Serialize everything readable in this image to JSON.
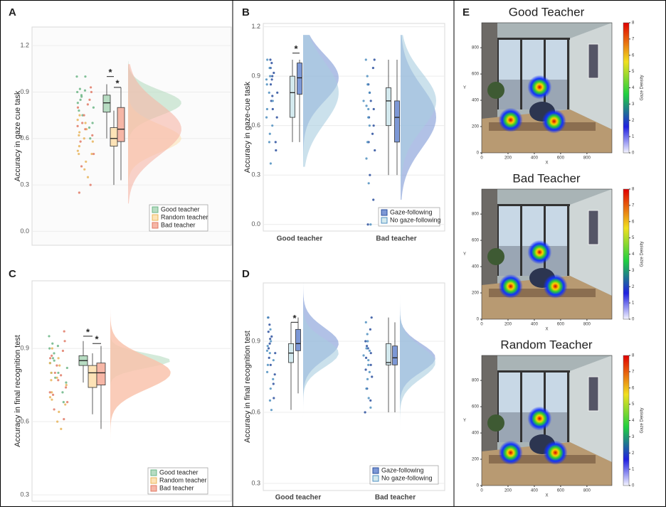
{
  "panel_labels": [
    "A",
    "B",
    "C",
    "D",
    "E"
  ],
  "chart_data": [
    {
      "type": "box",
      "ylabel": "Accuracy in gaze cue task",
      "ylim": [
        -0.09,
        1.32
      ],
      "yticks": [
        {
          "value": 0,
          "label": "0.0"
        },
        0.3,
        0.6,
        0.9,
        1.2
      ],
      "grid": true,
      "legend": "lower right",
      "series": [
        {
          "name": "Good teacher",
          "color": "#b7dcc2",
          "point_color": "#6bb585",
          "boxes": [
            {
              "low": 0.6,
              "q1": 0.77,
              "median": 0.83,
              "q3": 0.88,
              "high": 0.95
            }
          ],
          "points": [
            [
              1.0,
              0.92,
              0.9,
              0.88,
              0.85,
              0.83,
              0.8,
              0.78,
              0.75,
              0.7,
              0.67,
              0.6,
              0.91,
              0.87,
              1.0
            ]
          ]
        },
        {
          "name": "Random teacher",
          "color": "#fde3b7",
          "point_color": "#e8b45a",
          "boxes": [
            {
              "low": 0.3,
              "q1": 0.55,
              "median": 0.6,
              "q3": 0.67,
              "high": 0.78
            }
          ],
          "points": [
            [
              0.75,
              0.7,
              0.66,
              0.62,
              0.6,
              0.58,
              0.55,
              0.52,
              0.5,
              0.45,
              0.4,
              0.35,
              0.72,
              0.5,
              0.64
            ]
          ]
        },
        {
          "name": "Bad teacher",
          "color": "#f6b6a6",
          "point_color": "#e07a66",
          "boxes": [
            {
              "low": 0.33,
              "q1": 0.58,
              "median": 0.66,
              "q3": 0.8,
              "high": 0.93
            }
          ],
          "points": [
            [
              0.93,
              0.9,
              0.85,
              0.8,
              0.75,
              0.7,
              0.66,
              0.62,
              0.58,
              0.5,
              0.42,
              0.3,
              0.25,
              0.82,
              0.68
            ]
          ]
        }
      ],
      "annotations": [
        {
          "text": "*",
          "between": [
            0,
            1
          ],
          "y": 1.0
        },
        {
          "text": "*",
          "between": [
            1,
            2
          ],
          "y": 0.93
        }
      ]
    },
    {
      "type": "box",
      "ylabel": "Accuracy in gaze-cue task",
      "ylim": [
        -0.04,
        1.22
      ],
      "yticks": [
        {
          "value": 0,
          "label": "0.0"
        },
        0.3,
        0.6,
        0.9,
        1.2
      ],
      "grid": true,
      "legend": "lower right",
      "categories": [
        "Good teacher",
        "Bad teacher"
      ],
      "series": [
        {
          "name": "Gaze-following",
          "color": "#7d98d6",
          "point_color": "#2a4f9e",
          "boxes": [
            {
              "low": 0.5,
              "q1": 0.79,
              "median": 0.89,
              "q3": 0.98,
              "high": 1.0
            },
            {
              "low": 0.3,
              "q1": 0.5,
              "median": 0.65,
              "q3": 0.75,
              "high": 1.0
            }
          ],
          "points": [
            [
              1.0,
              0.98,
              0.95,
              0.9,
              0.88,
              0.85,
              0.8,
              0.75,
              0.7,
              0.65,
              0.5,
              0.45,
              0.92,
              0.78
            ],
            [
              1.0,
              0.95,
              0.85,
              0.75,
              0.7,
              0.65,
              0.6,
              0.5,
              0.45,
              0.3,
              0.15,
              0.0,
              0.8,
              0.55
            ]
          ]
        },
        {
          "name": "No gaze-following",
          "color": "#d3e9ee",
          "point_color": "#4f8fc0",
          "boxes": [
            {
              "low": 0.5,
              "q1": 0.65,
              "median": 0.8,
              "q3": 0.9,
              "high": 1.0
            },
            {
              "low": 0.3,
              "q1": 0.6,
              "median": 0.75,
              "q3": 0.83,
              "high": 1.0
            }
          ],
          "points": [
            [
              1.0,
              0.95,
              0.9,
              0.85,
              0.8,
              0.75,
              0.7,
              0.65,
              0.6,
              0.55,
              0.5,
              0.37,
              0.88
            ],
            [
              1.0,
              0.9,
              0.85,
              0.8,
              0.75,
              0.7,
              0.65,
              0.6,
              0.5,
              0.4,
              0.25,
              0.0,
              0.72
            ]
          ]
        }
      ],
      "annotations": [
        {
          "text": "*",
          "category": 0,
          "y": 1.04
        }
      ]
    },
    {
      "type": "box",
      "ylabel": "Accuracy in final recognition test",
      "ylim": [
        0.274,
        1.177
      ],
      "yticks": [
        0.3,
        0.6,
        0.9
      ],
      "grid": true,
      "legend": "lower right",
      "series": [
        {
          "name": "Good teacher",
          "color": "#b7dcc2",
          "point_color": "#6bb585",
          "boxes": [
            {
              "low": 0.76,
              "q1": 0.83,
              "median": 0.85,
              "q3": 0.87,
              "high": 0.93
            }
          ],
          "points": [
            [
              0.95,
              0.92,
              0.9,
              0.88,
              0.86,
              0.84,
              0.82,
              0.8,
              0.78,
              0.76,
              0.72,
              0.68,
              0.91,
              0.85,
              0.8
            ]
          ]
        },
        {
          "name": "Random teacher",
          "color": "#fde3b7",
          "point_color": "#e8b45a",
          "boxes": [
            {
              "low": 0.63,
              "q1": 0.74,
              "median": 0.8,
              "q3": 0.83,
              "high": 0.88
            }
          ],
          "points": [
            [
              0.9,
              0.86,
              0.83,
              0.8,
              0.78,
              0.75,
              0.72,
              0.7,
              0.67,
              0.64,
              0.6,
              0.57,
              0.84,
              0.77,
              0.69
            ]
          ]
        },
        {
          "name": "Bad teacher",
          "color": "#f6b6a6",
          "point_color": "#e07a66",
          "boxes": [
            {
              "low": 0.57,
              "q1": 0.75,
              "median": 0.8,
              "q3": 0.84,
              "high": 0.91
            }
          ],
          "points": [
            [
              0.97,
              0.93,
              0.89,
              0.86,
              0.83,
              0.8,
              0.77,
              0.74,
              0.71,
              0.68,
              0.65,
              0.61,
              0.87,
              0.79,
              0.72
            ]
          ]
        }
      ],
      "annotations": [
        {
          "text": "*",
          "between": [
            0,
            1
          ],
          "y": 0.95
        },
        {
          "text": "*",
          "between": [
            1,
            2
          ],
          "y": 0.92
        }
      ]
    },
    {
      "type": "box",
      "ylabel": "Accuracy in final recognition test",
      "ylim": [
        0.27,
        1.146
      ],
      "yticks": [
        0.3,
        0.6,
        0.9
      ],
      "grid": true,
      "legend": "lower right",
      "categories": [
        "Good teacher",
        "Bad teacher"
      ],
      "series": [
        {
          "name": "Gaze-following",
          "color": "#7d98d6",
          "point_color": "#2a4f9e",
          "boxes": [
            {
              "low": 0.68,
              "q1": 0.86,
              "median": 0.89,
              "q3": 0.95,
              "high": 1.0
            },
            {
              "low": 0.6,
              "q1": 0.8,
              "median": 0.83,
              "q3": 0.88,
              "high": 0.98
            }
          ],
          "points": [
            [
              1.0,
              0.97,
              0.94,
              0.91,
              0.89,
              0.87,
              0.85,
              0.83,
              0.8,
              0.76,
              0.72,
              0.66,
              0.92
            ],
            [
              1.0,
              0.95,
              0.9,
              0.87,
              0.85,
              0.83,
              0.8,
              0.78,
              0.75,
              0.7,
              0.65,
              0.6,
              0.88
            ]
          ]
        },
        {
          "name": "No gaze-following",
          "color": "#d3e9ee",
          "point_color": "#4f8fc0",
          "boxes": [
            {
              "low": 0.61,
              "q1": 0.81,
              "median": 0.85,
              "q3": 0.89,
              "high": 0.98
            },
            {
              "low": 0.6,
              "q1": 0.8,
              "median": 0.81,
              "q3": 0.89,
              "high": 1.0
            }
          ],
          "points": [
            [
              1.0,
              0.95,
              0.9,
              0.88,
              0.85,
              0.82,
              0.8,
              0.77,
              0.74,
              0.7,
              0.65,
              0.61,
              0.86
            ],
            [
              0.98,
              0.93,
              0.9,
              0.86,
              0.84,
              0.82,
              0.8,
              0.77,
              0.74,
              0.7,
              0.66,
              0.62,
              0.87
            ]
          ]
        }
      ],
      "annotations": [
        {
          "text": "*",
          "category": 0,
          "y": 0.98
        }
      ]
    },
    {
      "type": "heatmap",
      "title": "Good Teacher",
      "xlabel": "X",
      "ylabel": "Y",
      "xlim": [
        0,
        990
      ],
      "ylim": [
        0,
        990
      ],
      "xticks": [
        0,
        200,
        400,
        600,
        800
      ],
      "yticks": [
        0,
        200,
        400,
        600,
        800
      ],
      "colorbar_label": "Gaze Density",
      "colorbar_lim": [
        0,
        8
      ],
      "colorbar_ticks": [
        0,
        1,
        2,
        3,
        4,
        5,
        6,
        7,
        8
      ],
      "hotspots": [
        {
          "x": 440,
          "y": 500
        },
        {
          "x": 220,
          "y": 250
        },
        {
          "x": 550,
          "y": 240
        }
      ]
    },
    {
      "type": "heatmap",
      "title": "Bad Teacher",
      "xlabel": "X",
      "ylabel": "Y",
      "xlim": [
        0,
        990
      ],
      "ylim": [
        0,
        990
      ],
      "xticks": [
        0,
        200,
        400,
        600,
        800
      ],
      "yticks": [
        0,
        200,
        400,
        600,
        800
      ],
      "colorbar_label": "Gaze Density",
      "colorbar_lim": [
        0,
        8
      ],
      "colorbar_ticks": [
        0,
        1,
        2,
        3,
        4,
        5,
        6,
        7,
        8
      ],
      "hotspots": [
        {
          "x": 440,
          "y": 510
        },
        {
          "x": 220,
          "y": 250
        },
        {
          "x": 560,
          "y": 250
        }
      ]
    },
    {
      "type": "heatmap",
      "title": "Random Teacher",
      "xlabel": "X",
      "ylabel": "Y",
      "xlim": [
        0,
        990
      ],
      "ylim": [
        0,
        990
      ],
      "xticks": [
        0,
        200,
        400,
        600,
        800
      ],
      "yticks": [
        0,
        200,
        400,
        600,
        800
      ],
      "colorbar_label": "Gaze Density",
      "colorbar_lim": [
        0,
        8
      ],
      "colorbar_ticks": [
        0,
        1,
        2,
        3,
        4,
        5,
        6,
        7,
        8
      ],
      "hotspots": [
        {
          "x": 440,
          "y": 510
        },
        {
          "x": 220,
          "y": 250
        },
        {
          "x": 560,
          "y": 250
        }
      ]
    }
  ]
}
